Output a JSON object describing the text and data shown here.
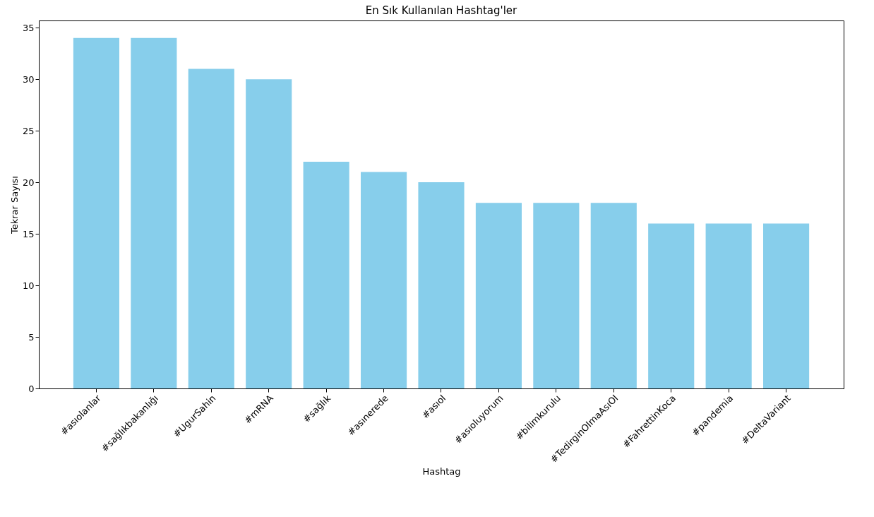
{
  "chart_data": {
    "type": "bar",
    "title": "En Sık Kullanılan Hashtag'ler",
    "xlabel": "Hashtag",
    "ylabel": "Tekrar Sayısı",
    "categories": [
      "#asıolanlar",
      "#sağlıkbakanlığı",
      "#UgurSahin",
      "#mRNA",
      "#sağlık",
      "#asınerede",
      "#asıol",
      "#asıoluyorum",
      "#bilimkurulu",
      "#TedirginOlmaAsıOl",
      "#FahrettinKoca",
      "#pandemia",
      "#DeltaVariant"
    ],
    "values": [
      34,
      34,
      31,
      30,
      22,
      21,
      20,
      18,
      18,
      18,
      16,
      16,
      16
    ],
    "color": "#87ceeb",
    "ylim": [
      0,
      35.7
    ],
    "yticks": [
      0,
      5,
      10,
      15,
      20,
      25,
      30,
      35
    ],
    "grid": false
  }
}
